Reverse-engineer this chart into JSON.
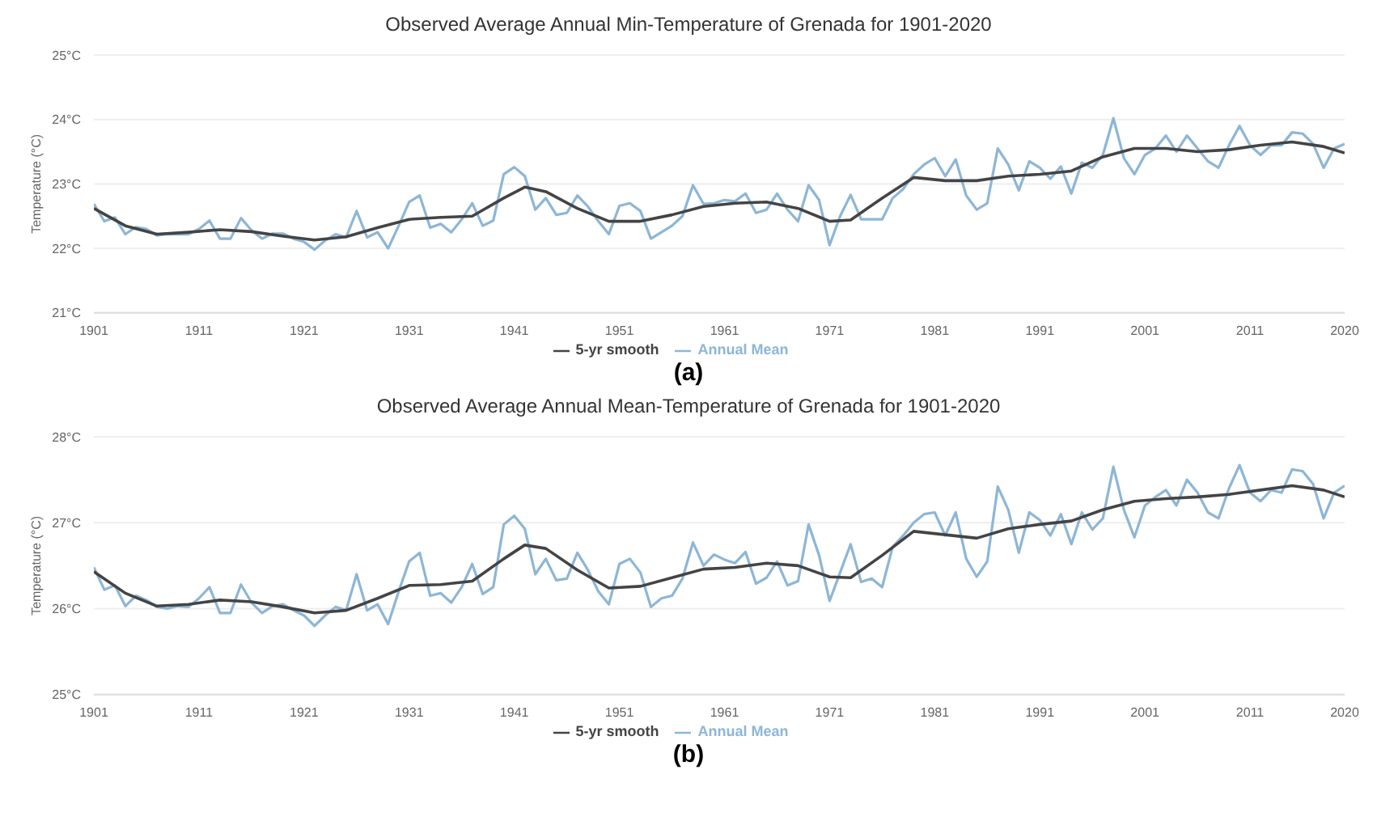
{
  "chart_data": [
    {
      "type": "line",
      "title": "Observed Average Annual Min-Temperature of Grenada for 1901-2020",
      "ylabel": "Temperature (°C)",
      "annotations": [
        "(a)"
      ],
      "x": [
        1901,
        1902,
        1903,
        1904,
        1905,
        1906,
        1907,
        1908,
        1909,
        1910,
        1911,
        1912,
        1913,
        1914,
        1915,
        1916,
        1917,
        1918,
        1919,
        1920,
        1921,
        1922,
        1923,
        1924,
        1925,
        1926,
        1927,
        1928,
        1929,
        1930,
        1931,
        1932,
        1933,
        1934,
        1935,
        1936,
        1937,
        1938,
        1939,
        1940,
        1941,
        1942,
        1943,
        1944,
        1945,
        1946,
        1947,
        1948,
        1949,
        1950,
        1951,
        1952,
        1953,
        1954,
        1955,
        1956,
        1957,
        1958,
        1959,
        1960,
        1961,
        1962,
        1963,
        1964,
        1965,
        1966,
        1967,
        1968,
        1969,
        1970,
        1971,
        1972,
        1973,
        1974,
        1975,
        1976,
        1977,
        1978,
        1979,
        1980,
        1981,
        1982,
        1983,
        1984,
        1985,
        1986,
        1987,
        1988,
        1989,
        1990,
        1991,
        1992,
        1993,
        1994,
        1995,
        1996,
        1997,
        1998,
        1999,
        2000,
        2001,
        2002,
        2003,
        2004,
        2005,
        2006,
        2007,
        2008,
        2009,
        2010,
        2011,
        2012,
        2013,
        2014,
        2015,
        2016,
        2017,
        2018,
        2019,
        2020
      ],
      "series": [
        {
          "name": "Annual Mean",
          "color": "#8db6d6",
          "values": [
            22.69,
            22.42,
            22.48,
            22.22,
            22.33,
            22.3,
            22.2,
            22.22,
            22.22,
            22.22,
            22.3,
            22.43,
            22.15,
            22.15,
            22.47,
            22.28,
            22.15,
            22.23,
            22.23,
            22.15,
            22.1,
            21.98,
            22.12,
            22.22,
            22.17,
            22.58,
            22.17,
            22.25,
            22.0,
            22.35,
            22.72,
            22.82,
            22.32,
            22.38,
            22.25,
            22.45,
            22.7,
            22.35,
            22.43,
            23.15,
            23.26,
            23.12,
            22.6,
            22.78,
            22.52,
            22.55,
            22.82,
            22.65,
            22.42,
            22.22,
            22.66,
            22.7,
            22.58,
            22.15,
            22.25,
            22.35,
            22.5,
            22.98,
            22.69,
            22.7,
            22.75,
            22.73,
            22.85,
            22.55,
            22.6,
            22.85,
            22.6,
            22.42,
            22.98,
            22.75,
            22.05,
            22.5,
            22.83,
            22.45,
            22.45,
            22.45,
            22.78,
            22.92,
            23.15,
            23.3,
            23.4,
            23.12,
            23.38,
            22.82,
            22.6,
            22.7,
            23.55,
            23.3,
            22.9,
            23.35,
            23.25,
            23.08,
            23.27,
            22.85,
            23.33,
            23.25,
            23.45,
            24.02,
            23.4,
            23.15,
            23.45,
            23.55,
            23.75,
            23.5,
            23.75,
            23.55,
            23.35,
            23.25,
            23.6,
            23.9,
            23.6,
            23.45,
            23.6,
            23.6,
            23.8,
            23.78,
            23.62,
            23.25,
            23.55,
            23.62
          ]
        },
        {
          "name": "5-yr smooth",
          "color": "#444444",
          "x": [
            1901,
            1904,
            1907,
            1910,
            1913,
            1916,
            1919,
            1922,
            1925,
            1928,
            1931,
            1934,
            1937,
            1940,
            1942,
            1944,
            1947,
            1950,
            1953,
            1956,
            1959,
            1962,
            1965,
            1968,
            1971,
            1973,
            1976,
            1979,
            1982,
            1985,
            1988,
            1991,
            1994,
            1997,
            2000,
            2003,
            2006,
            2009,
            2012,
            2015,
            2018,
            2020
          ],
          "values": [
            22.62,
            22.35,
            22.22,
            22.25,
            22.29,
            22.26,
            22.19,
            22.13,
            22.18,
            22.32,
            22.45,
            22.48,
            22.5,
            22.78,
            22.95,
            22.88,
            22.62,
            22.42,
            22.42,
            22.52,
            22.65,
            22.7,
            22.72,
            22.62,
            22.42,
            22.44,
            22.78,
            23.1,
            23.05,
            23.05,
            23.12,
            23.15,
            23.2,
            23.42,
            23.55,
            23.55,
            23.5,
            23.53,
            23.6,
            23.65,
            23.58,
            23.48
          ]
        }
      ],
      "xlim": [
        1901,
        2020
      ],
      "xticks": [
        1901,
        1911,
        1921,
        1931,
        1941,
        1951,
        1961,
        1971,
        1981,
        1991,
        2001,
        2011,
        2020
      ],
      "ylim": [
        21,
        25
      ],
      "yticks": [
        {
          "value": 21,
          "label": "21°C"
        },
        {
          "value": 22,
          "label": "22°C"
        },
        {
          "value": 23,
          "label": "23°C"
        },
        {
          "value": 24,
          "label": "24°C"
        },
        {
          "value": 25,
          "label": "25°C"
        }
      ],
      "grid": "y",
      "legend": "bottom",
      "marker": "none",
      "line_style": "solid"
    },
    {
      "type": "line",
      "title": "Observed Average Annual Mean-Temperature of Grenada for 1901-2020",
      "ylabel": "Temperature (°C)",
      "annotations": [
        "(b)"
      ],
      "x": [
        1901,
        1902,
        1903,
        1904,
        1905,
        1906,
        1907,
        1908,
        1909,
        1910,
        1911,
        1912,
        1913,
        1914,
        1915,
        1916,
        1917,
        1918,
        1919,
        1920,
        1921,
        1922,
        1923,
        1924,
        1925,
        1926,
        1927,
        1928,
        1929,
        1930,
        1931,
        1932,
        1933,
        1934,
        1935,
        1936,
        1937,
        1938,
        1939,
        1940,
        1941,
        1942,
        1943,
        1944,
        1945,
        1946,
        1947,
        1948,
        1949,
        1950,
        1951,
        1952,
        1953,
        1954,
        1955,
        1956,
        1957,
        1958,
        1959,
        1960,
        1961,
        1962,
        1963,
        1964,
        1965,
        1966,
        1967,
        1968,
        1969,
        1970,
        1971,
        1972,
        1973,
        1974,
        1975,
        1976,
        1977,
        1978,
        1979,
        1980,
        1981,
        1982,
        1983,
        1984,
        1985,
        1986,
        1987,
        1988,
        1989,
        1990,
        1991,
        1992,
        1993,
        1994,
        1995,
        1996,
        1997,
        1998,
        1999,
        2000,
        2001,
        2002,
        2003,
        2004,
        2005,
        2006,
        2007,
        2008,
        2009,
        2010,
        2011,
        2012,
        2013,
        2014,
        2015,
        2016,
        2017,
        2018,
        2019,
        2020
      ],
      "series": [
        {
          "name": "Annual Mean",
          "color": "#8db6d6",
          "values": [
            26.48,
            26.22,
            26.27,
            26.03,
            26.15,
            26.1,
            26.02,
            26.0,
            26.03,
            26.02,
            26.12,
            26.25,
            25.95,
            25.95,
            26.28,
            26.07,
            25.95,
            26.03,
            26.05,
            25.98,
            25.92,
            25.8,
            25.92,
            26.02,
            25.98,
            26.4,
            25.98,
            26.05,
            25.82,
            26.2,
            26.55,
            26.65,
            26.15,
            26.18,
            26.07,
            26.25,
            26.52,
            26.17,
            26.25,
            26.98,
            27.08,
            26.93,
            26.4,
            26.58,
            26.33,
            26.35,
            26.65,
            26.45,
            26.2,
            26.05,
            26.52,
            26.58,
            26.42,
            26.02,
            26.12,
            26.15,
            26.35,
            26.77,
            26.5,
            26.63,
            26.57,
            26.53,
            26.66,
            26.29,
            26.36,
            26.55,
            26.27,
            26.32,
            26.98,
            26.62,
            26.09,
            26.42,
            26.75,
            26.31,
            26.35,
            26.25,
            26.72,
            26.85,
            27.0,
            27.1,
            27.12,
            26.85,
            27.12,
            26.58,
            26.37,
            26.55,
            27.42,
            27.15,
            26.65,
            27.12,
            27.03,
            26.85,
            27.1,
            26.75,
            27.12,
            26.92,
            27.05,
            27.65,
            27.15,
            26.83,
            27.2,
            27.3,
            27.38,
            27.2,
            27.5,
            27.35,
            27.12,
            27.05,
            27.4,
            27.67,
            27.35,
            27.25,
            27.38,
            27.35,
            27.62,
            27.6,
            27.45,
            27.05,
            27.35,
            27.43
          ]
        },
        {
          "name": "5-yr smooth",
          "color": "#444444",
          "x": [
            1901,
            1904,
            1907,
            1910,
            1913,
            1916,
            1919,
            1922,
            1925,
            1928,
            1931,
            1934,
            1937,
            1940,
            1942,
            1944,
            1947,
            1950,
            1953,
            1956,
            1959,
            1962,
            1965,
            1968,
            1971,
            1973,
            1976,
            1979,
            1982,
            1985,
            1988,
            1991,
            1994,
            1997,
            2000,
            2003,
            2006,
            2009,
            2012,
            2015,
            2018,
            2020
          ],
          "values": [
            26.43,
            26.18,
            26.03,
            26.05,
            26.1,
            26.08,
            26.02,
            25.95,
            25.98,
            26.12,
            26.27,
            26.28,
            26.32,
            26.58,
            26.74,
            26.7,
            26.45,
            26.24,
            26.26,
            26.36,
            26.46,
            26.48,
            26.53,
            26.5,
            26.37,
            26.36,
            26.62,
            26.9,
            26.86,
            26.82,
            26.93,
            26.98,
            27.02,
            27.15,
            27.25,
            27.28,
            27.3,
            27.33,
            27.38,
            27.43,
            27.38,
            27.3
          ]
        }
      ],
      "xlim": [
        1901,
        2020
      ],
      "xticks": [
        1901,
        1911,
        1921,
        1931,
        1941,
        1951,
        1961,
        1971,
        1981,
        1991,
        2001,
        2011,
        2020
      ],
      "ylim": [
        25,
        28
      ],
      "yticks": [
        {
          "value": 25,
          "label": "25°C"
        },
        {
          "value": 26,
          "label": "26°C"
        },
        {
          "value": 27,
          "label": "27°C"
        },
        {
          "value": 28,
          "label": "28°C"
        }
      ],
      "grid": "y",
      "legend": "bottom",
      "marker": "none",
      "line_style": "solid"
    }
  ]
}
